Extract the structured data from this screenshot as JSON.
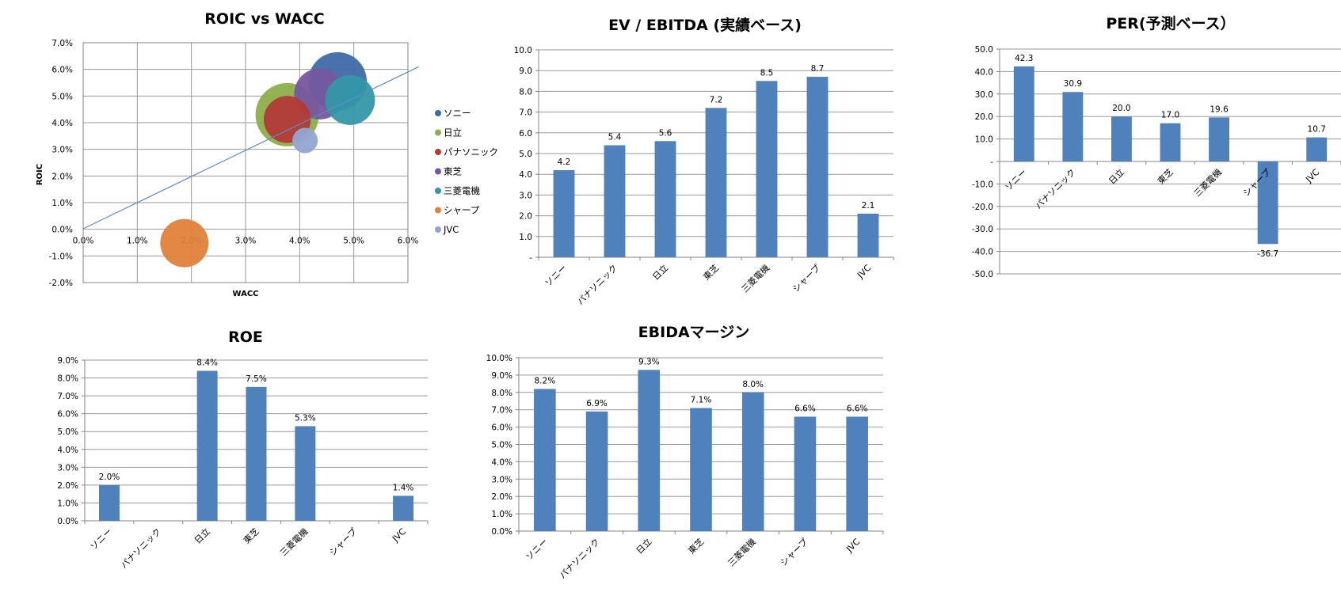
{
  "colors": {
    "bar": "#4F81BD",
    "grid": "#9A9A9A",
    "axis": "#868686"
  },
  "chart_data": [
    {
      "id": "roic",
      "type": "scatter",
      "title": "ROIC vs WACC",
      "xlabel": "WACC",
      "ylabel": "ROIC",
      "xlim": [
        0,
        0.06
      ],
      "ylim": [
        -0.02,
        0.07
      ],
      "xticks": [
        "0.0%",
        "1.0%",
        "2.0%",
        "3.0%",
        "4.0%",
        "5.0%",
        "6.0%"
      ],
      "yticks": [
        "-2.0%",
        "-1.0%",
        "0.0%",
        "1.0%",
        "2.0%",
        "3.0%",
        "4.0%",
        "5.0%",
        "6.0%",
        "7.0%"
      ],
      "grid": true,
      "legend": "right",
      "series": [
        {
          "name": "ソニー",
          "x": 0.047,
          "y": 0.0555,
          "size": 0.85,
          "color": "#3F6AA8"
        },
        {
          "name": "日立",
          "x": 0.0377,
          "y": 0.043,
          "size": 1.0,
          "color": "#8DAE4A"
        },
        {
          "name": "パナソニック",
          "x": 0.0377,
          "y": 0.0412,
          "size": 0.55,
          "color": "#B23A38"
        },
        {
          "name": "東芝",
          "x": 0.0437,
          "y": 0.0508,
          "size": 0.65,
          "color": "#76579E"
        },
        {
          "name": "三菱電機",
          "x": 0.0493,
          "y": 0.0485,
          "size": 0.62,
          "color": "#3497A8"
        },
        {
          "name": "シャープ",
          "x": 0.0187,
          "y": -0.0052,
          "size": 0.58,
          "color": "#E0823A"
        },
        {
          "name": "JVC",
          "x": 0.041,
          "y": 0.0333,
          "size": 0.16,
          "color": "#93A6D3"
        }
      ],
      "reference_line": {
        "x": [
          0,
          0.062
        ],
        "y": [
          0.0002,
          0.061
        ]
      }
    },
    {
      "id": "ev",
      "type": "bar",
      "title": "EV / EBITDA (実績ベース)",
      "categories": [
        "ソニー",
        "パナソニック",
        "日立",
        "東芝",
        "三菱電機",
        "シャープ",
        "JVC"
      ],
      "values": [
        4.2,
        5.4,
        5.6,
        7.2,
        8.5,
        8.7,
        2.1
      ],
      "labels": [
        "4.2",
        "5.4",
        "5.6",
        "7.2",
        "8.5",
        "8.7",
        "2.1"
      ],
      "ylim": [
        0,
        10
      ],
      "yticks": [
        "-",
        "1.0",
        "2.0",
        "3.0",
        "4.0",
        "5.0",
        "6.0",
        "7.0",
        "8.0",
        "9.0",
        "10.0"
      ],
      "grid": true
    },
    {
      "id": "per",
      "type": "bar",
      "title": "PER(予測ベース）",
      "categories": [
        "ソニー",
        "パナソニック",
        "日立",
        "東芝",
        "三菱電機",
        "シャープ",
        "JVC"
      ],
      "values": [
        42.3,
        30.9,
        20.0,
        17.0,
        19.6,
        -36.7,
        10.7
      ],
      "labels": [
        "42.3",
        "30.9",
        "20.0",
        "17.0",
        "19.6",
        "-36.7",
        "10.7"
      ],
      "ylim": [
        -50,
        50
      ],
      "yticks": [
        "-50.0",
        "-40.0",
        "-30.0",
        "-20.0",
        "-10.0",
        "-",
        "10.0",
        "20.0",
        "30.0",
        "40.0",
        "50.0"
      ],
      "grid": true
    },
    {
      "id": "roe",
      "type": "bar",
      "title": "ROE",
      "categories": [
        "ソニー",
        "パナソニック",
        "日立",
        "東芝",
        "三菱電機",
        "シャープ",
        "JVC"
      ],
      "values": [
        0.02,
        null,
        0.084,
        0.075,
        0.053,
        null,
        0.014
      ],
      "labels": [
        "2.0%",
        "",
        "8.4%",
        "7.5%",
        "5.3%",
        "",
        "1.4%"
      ],
      "ylim": [
        0,
        0.09
      ],
      "yticks": [
        "0.0%",
        "1.0%",
        "2.0%",
        "3.0%",
        "4.0%",
        "5.0%",
        "6.0%",
        "7.0%",
        "8.0%",
        "9.0%"
      ],
      "grid": true
    },
    {
      "id": "ebida",
      "type": "bar",
      "title": "EBIDAマージン",
      "categories": [
        "ソニー",
        "パナソニック",
        "日立",
        "東芝",
        "三菱電機",
        "シャープ",
        "JVC"
      ],
      "values": [
        0.082,
        0.069,
        0.093,
        0.071,
        0.08,
        0.066,
        0.066
      ],
      "labels": [
        "8.2%",
        "6.9%",
        "9.3%",
        "7.1%",
        "8.0%",
        "6.6%",
        "6.6%"
      ],
      "ylim": [
        0,
        0.1
      ],
      "yticks": [
        "0.0%",
        "1.0%",
        "2.0%",
        "3.0%",
        "4.0%",
        "5.0%",
        "6.0%",
        "7.0%",
        "8.0%",
        "9.0%",
        "10.0%"
      ],
      "grid": true
    }
  ]
}
